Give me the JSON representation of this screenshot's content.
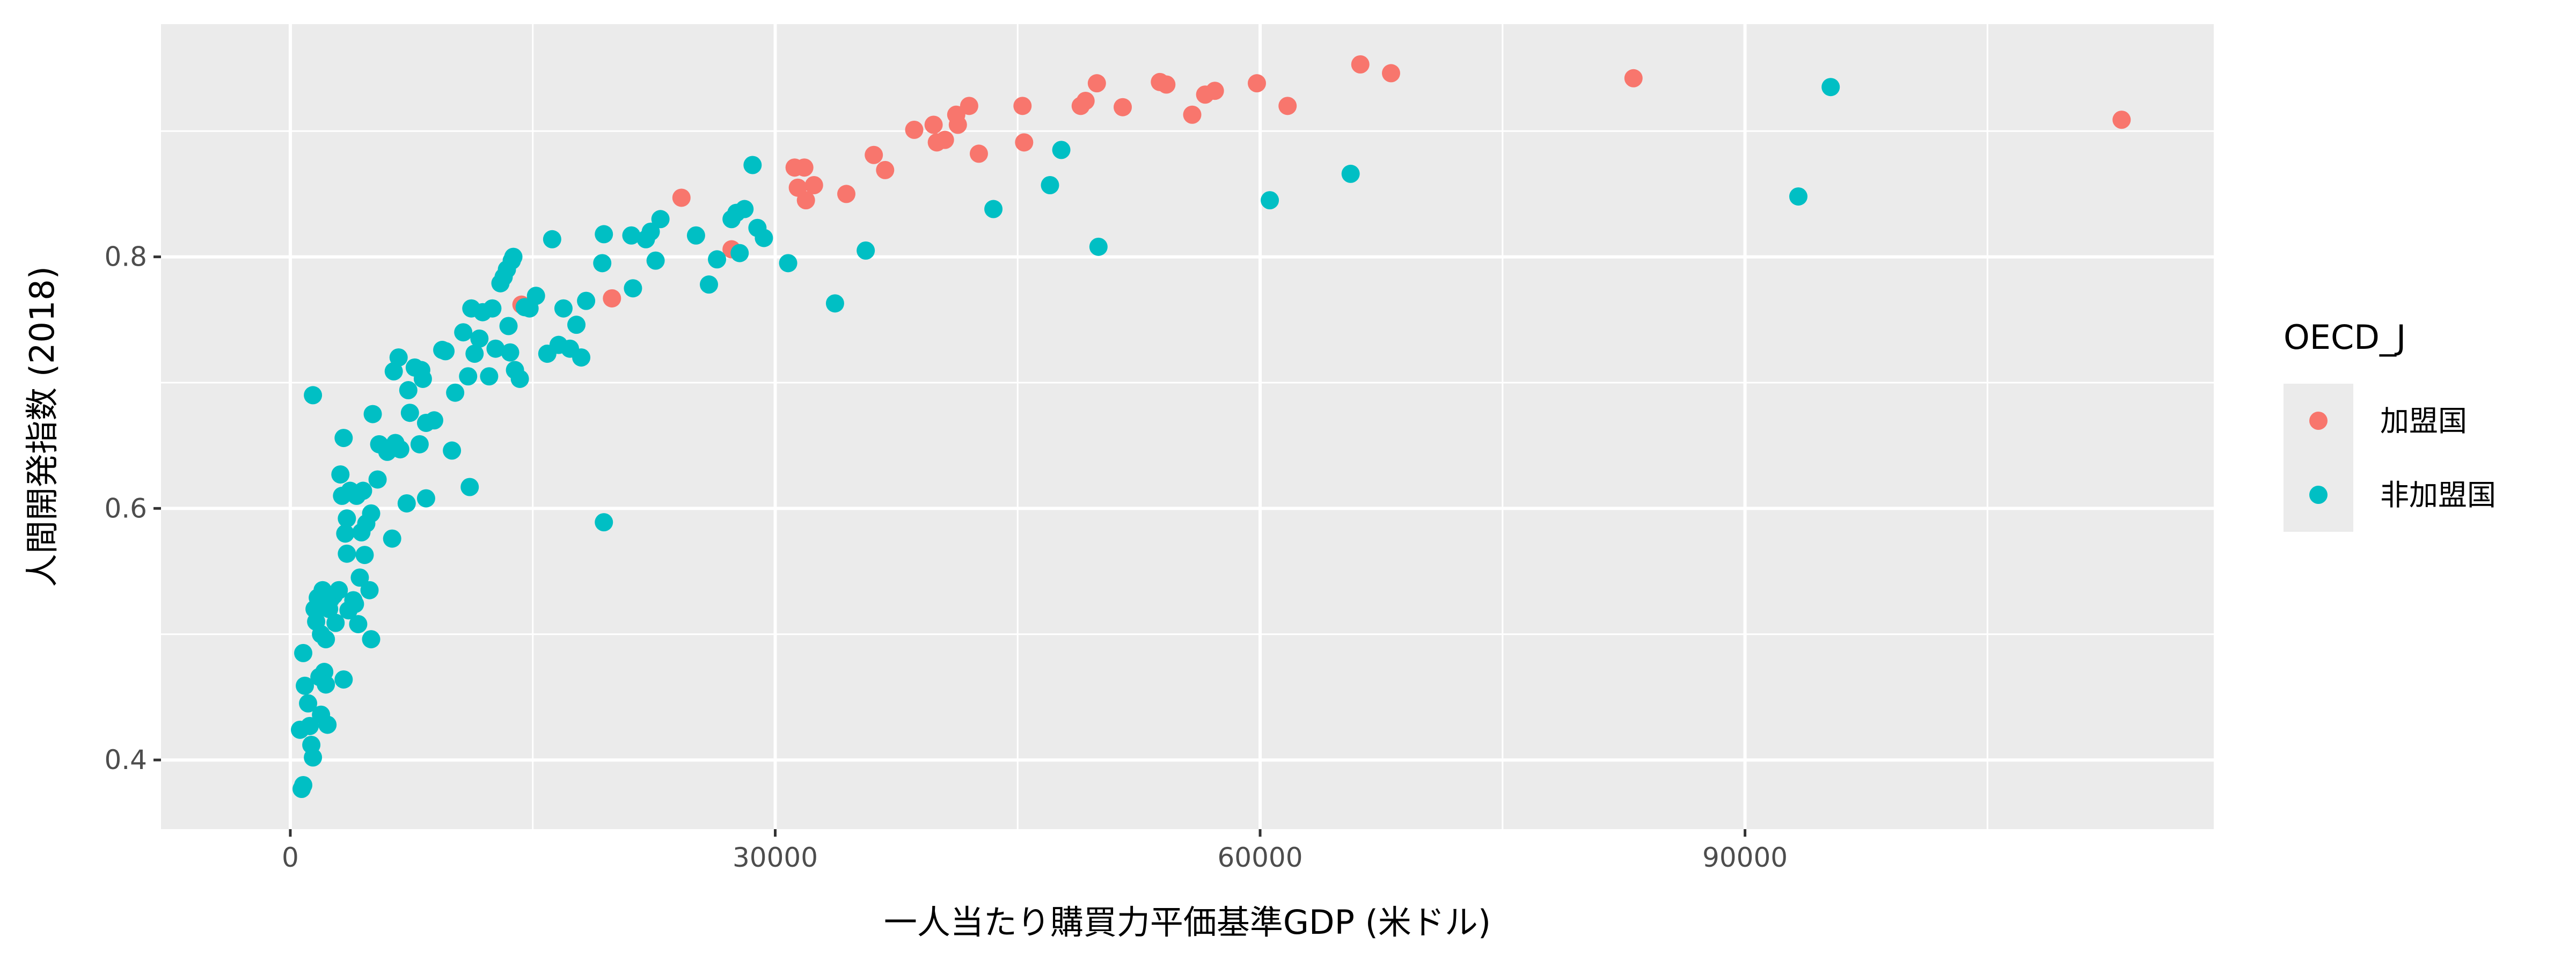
{
  "chart_data": {
    "type": "scatter",
    "title": "",
    "xlabel": "一人当たり購買力平価基準GDP (米ドル)",
    "ylabel": "人間開発指数 (2018)",
    "xlim": [
      -8000,
      119000
    ],
    "ylim": [
      0.345,
      0.985
    ],
    "x_ticks": [
      0,
      30000,
      60000,
      90000
    ],
    "y_ticks": [
      0.4,
      0.6,
      0.8
    ],
    "grid": true,
    "legend": {
      "title": "OECD_J",
      "placement": "right",
      "entries": [
        {
          "label": "加盟国",
          "color": "#F8766D"
        },
        {
          "label": "非加盟国",
          "color": "#00BFC4"
        }
      ]
    },
    "series": [
      {
        "name": "加盟国",
        "color": "#F8766D",
        "points": [
          [
            14300,
            0.762
          ],
          [
            19900,
            0.767
          ],
          [
            24200,
            0.847
          ],
          [
            27300,
            0.806
          ],
          [
            31200,
            0.871
          ],
          [
            31800,
            0.871
          ],
          [
            31400,
            0.855
          ],
          [
            31900,
            0.845
          ],
          [
            32400,
            0.857
          ],
          [
            34400,
            0.85
          ],
          [
            36100,
            0.881
          ],
          [
            36800,
            0.869
          ],
          [
            38600,
            0.901
          ],
          [
            39800,
            0.905
          ],
          [
            40000,
            0.891
          ],
          [
            40500,
            0.893
          ],
          [
            41200,
            0.913
          ],
          [
            41300,
            0.905
          ],
          [
            42000,
            0.92
          ],
          [
            42600,
            0.882
          ],
          [
            45300,
            0.92
          ],
          [
            45400,
            0.891
          ],
          [
            48900,
            0.92
          ],
          [
            49200,
            0.924
          ],
          [
            49900,
            0.938
          ],
          [
            51500,
            0.919
          ],
          [
            53800,
            0.939
          ],
          [
            54200,
            0.937
          ],
          [
            55800,
            0.913
          ],
          [
            56600,
            0.929
          ],
          [
            57200,
            0.932
          ],
          [
            59800,
            0.938
          ],
          [
            61700,
            0.92
          ],
          [
            66200,
            0.953
          ],
          [
            68100,
            0.946
          ],
          [
            83100,
            0.942
          ],
          [
            113300,
            0.909
          ]
        ]
      },
      {
        "name": "非加盟国",
        "color": "#00BFC4",
        "points": [
          [
            700,
            0.377
          ],
          [
            800,
            0.38
          ],
          [
            600,
            0.424
          ],
          [
            900,
            0.459
          ],
          [
            800,
            0.485
          ],
          [
            1100,
            0.445
          ],
          [
            1200,
            0.427
          ],
          [
            1300,
            0.412
          ],
          [
            1400,
            0.402
          ],
          [
            1400,
            0.69
          ],
          [
            1500,
            0.52
          ],
          [
            1600,
            0.51
          ],
          [
            1700,
            0.529
          ],
          [
            1800,
            0.466
          ],
          [
            1900,
            0.436
          ],
          [
            1900,
            0.5
          ],
          [
            2000,
            0.535
          ],
          [
            2100,
            0.47
          ],
          [
            2200,
            0.496
          ],
          [
            2200,
            0.46
          ],
          [
            2300,
            0.428
          ],
          [
            2400,
            0.52
          ],
          [
            2500,
            0.528
          ],
          [
            2700,
            0.531
          ],
          [
            2800,
            0.509
          ],
          [
            3000,
            0.535
          ],
          [
            3100,
            0.627
          ],
          [
            3200,
            0.61
          ],
          [
            3300,
            0.656
          ],
          [
            3300,
            0.464
          ],
          [
            3400,
            0.58
          ],
          [
            3500,
            0.592
          ],
          [
            3500,
            0.564
          ],
          [
            3600,
            0.519
          ],
          [
            3700,
            0.614
          ],
          [
            3900,
            0.527
          ],
          [
            4000,
            0.524
          ],
          [
            4100,
            0.61
          ],
          [
            4200,
            0.508
          ],
          [
            4300,
            0.545
          ],
          [
            4400,
            0.581
          ],
          [
            4500,
            0.614
          ],
          [
            4600,
            0.563
          ],
          [
            4700,
            0.588
          ],
          [
            4900,
            0.535
          ],
          [
            5000,
            0.596
          ],
          [
            5000,
            0.496
          ],
          [
            5100,
            0.675
          ],
          [
            5400,
            0.623
          ],
          [
            5500,
            0.651
          ],
          [
            6000,
            0.645
          ],
          [
            6300,
            0.576
          ],
          [
            6400,
            0.709
          ],
          [
            6500,
            0.652
          ],
          [
            6700,
            0.72
          ],
          [
            6800,
            0.647
          ],
          [
            7200,
            0.604
          ],
          [
            7300,
            0.694
          ],
          [
            7400,
            0.676
          ],
          [
            7700,
            0.712
          ],
          [
            8000,
            0.651
          ],
          [
            8100,
            0.71
          ],
          [
            8200,
            0.703
          ],
          [
            8400,
            0.608
          ],
          [
            8400,
            0.668
          ],
          [
            8900,
            0.67
          ],
          [
            9400,
            0.726
          ],
          [
            9600,
            0.725
          ],
          [
            10000,
            0.646
          ],
          [
            10200,
            0.692
          ],
          [
            10700,
            0.74
          ],
          [
            11000,
            0.705
          ],
          [
            11100,
            0.617
          ],
          [
            11200,
            0.759
          ],
          [
            11400,
            0.723
          ],
          [
            11700,
            0.735
          ],
          [
            11900,
            0.756
          ],
          [
            12300,
            0.705
          ],
          [
            12500,
            0.759
          ],
          [
            12700,
            0.727
          ],
          [
            13000,
            0.779
          ],
          [
            13200,
            0.784
          ],
          [
            13400,
            0.79
          ],
          [
            13500,
            0.745
          ],
          [
            13600,
            0.724
          ],
          [
            13700,
            0.797
          ],
          [
            13800,
            0.8
          ],
          [
            13900,
            0.71
          ],
          [
            14200,
            0.703
          ],
          [
            14500,
            0.76
          ],
          [
            14800,
            0.759
          ],
          [
            15200,
            0.769
          ],
          [
            15900,
            0.723
          ],
          [
            16200,
            0.814
          ],
          [
            16600,
            0.73
          ],
          [
            16900,
            0.759
          ],
          [
            17300,
            0.727
          ],
          [
            17700,
            0.746
          ],
          [
            18000,
            0.72
          ],
          [
            18300,
            0.765
          ],
          [
            19300,
            0.795
          ],
          [
            19400,
            0.818
          ],
          [
            19400,
            0.589
          ],
          [
            21100,
            0.817
          ],
          [
            21200,
            0.775
          ],
          [
            22000,
            0.814
          ],
          [
            22300,
            0.82
          ],
          [
            22600,
            0.797
          ],
          [
            22900,
            0.83
          ],
          [
            25100,
            0.817
          ],
          [
            25900,
            0.778
          ],
          [
            26400,
            0.798
          ],
          [
            27300,
            0.83
          ],
          [
            27600,
            0.835
          ],
          [
            27800,
            0.803
          ],
          [
            28100,
            0.838
          ],
          [
            28600,
            0.873
          ],
          [
            28900,
            0.823
          ],
          [
            29300,
            0.815
          ],
          [
            30800,
            0.795
          ],
          [
            33700,
            0.763
          ],
          [
            35600,
            0.805
          ],
          [
            43500,
            0.838
          ],
          [
            47000,
            0.857
          ],
          [
            47700,
            0.885
          ],
          [
            50000,
            0.808
          ],
          [
            60600,
            0.845
          ],
          [
            65600,
            0.866
          ],
          [
            93300,
            0.848
          ],
          [
            95300,
            0.935
          ]
        ]
      }
    ]
  }
}
